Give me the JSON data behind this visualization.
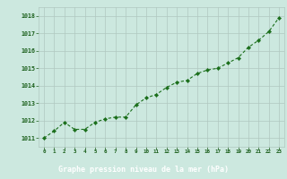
{
  "x": [
    0,
    1,
    2,
    3,
    4,
    5,
    6,
    7,
    8,
    9,
    10,
    11,
    12,
    13,
    14,
    15,
    16,
    17,
    18,
    19,
    20,
    21,
    22,
    23
  ],
  "y": [
    1011.0,
    1011.4,
    1011.9,
    1011.5,
    1011.5,
    1011.9,
    1012.1,
    1012.2,
    1012.2,
    1012.9,
    1013.3,
    1013.5,
    1013.9,
    1014.2,
    1014.3,
    1014.7,
    1014.9,
    1015.0,
    1015.3,
    1015.6,
    1016.2,
    1016.6,
    1017.1,
    1017.9
  ],
  "line_color": "#1a6e1a",
  "marker_color": "#1a6e1a",
  "bg_color": "#cce8df",
  "grid_color": "#b0c8c0",
  "xlabel": "Graphe pression niveau de la mer (hPa)",
  "xlabel_color": "#1a5e1a",
  "tick_label_color": "#1a5e1a",
  "bottom_bar_color": "#2d7d2d",
  "ylim": [
    1010.5,
    1018.5
  ],
  "yticks": [
    1011,
    1012,
    1013,
    1014,
    1015,
    1016,
    1017,
    1018
  ],
  "xticks": [
    0,
    1,
    2,
    3,
    4,
    5,
    6,
    7,
    8,
    9,
    10,
    11,
    12,
    13,
    14,
    15,
    16,
    17,
    18,
    19,
    20,
    21,
    22,
    23
  ]
}
